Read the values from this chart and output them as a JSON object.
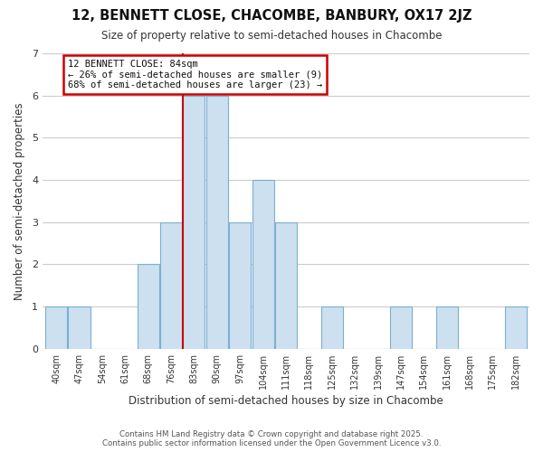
{
  "title": "12, BENNETT CLOSE, CHACOMBE, BANBURY, OX17 2JZ",
  "subtitle": "Size of property relative to semi-detached houses in Chacombe",
  "xlabel": "Distribution of semi-detached houses by size in Chacombe",
  "ylabel": "Number of semi-detached properties",
  "bin_labels": [
    "40sqm",
    "47sqm",
    "54sqm",
    "61sqm",
    "68sqm",
    "76sqm",
    "83sqm",
    "90sqm",
    "97sqm",
    "104sqm",
    "111sqm",
    "118sqm",
    "125sqm",
    "132sqm",
    "139sqm",
    "147sqm",
    "154sqm",
    "161sqm",
    "168sqm",
    "175sqm",
    "182sqm"
  ],
  "bin_counts": [
    1,
    1,
    0,
    0,
    2,
    3,
    6,
    6,
    3,
    4,
    3,
    0,
    1,
    0,
    0,
    1,
    0,
    1,
    0,
    0,
    1
  ],
  "bar_color": "#cce0f0",
  "bar_edge_color": "#7ab0d0",
  "subject_bin_index": 6,
  "annotation_title": "12 BENNETT CLOSE: 84sqm",
  "annotation_line1": "← 26% of semi-detached houses are smaller (9)",
  "annotation_line2": "68% of semi-detached houses are larger (23) →",
  "annotation_box_color": "white",
  "annotation_border_color": "#cc0000",
  "ylim": [
    0,
    7
  ],
  "yticks": [
    0,
    1,
    2,
    3,
    4,
    5,
    6,
    7
  ],
  "footer_line1": "Contains HM Land Registry data © Crown copyright and database right 2025.",
  "footer_line2": "Contains public sector information licensed under the Open Government Licence v3.0.",
  "bg_color": "#ffffff",
  "grid_color": "#cccccc"
}
